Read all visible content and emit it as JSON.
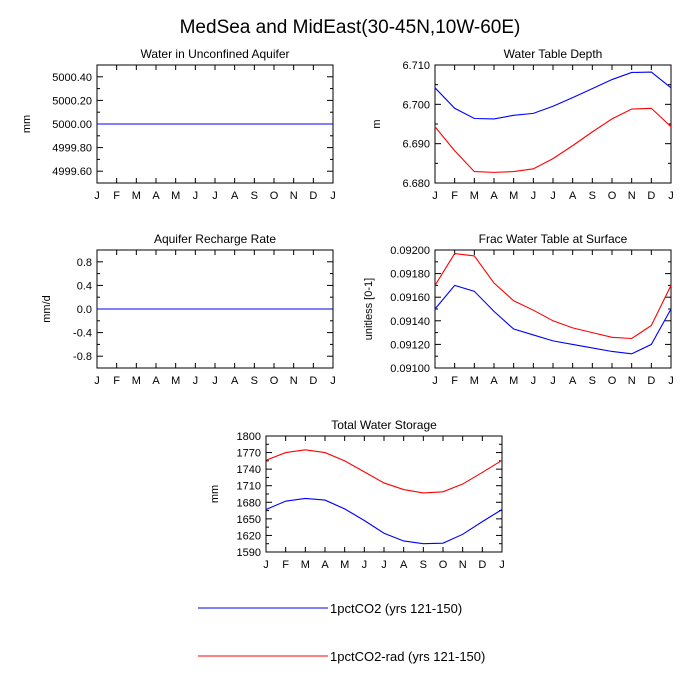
{
  "figure": {
    "title": "MedSea and MidEast(30-45N,10W-60E)"
  },
  "colors": {
    "blue": "#0000ff",
    "red": "#ff0000"
  },
  "legend": [
    {
      "label": "1pctCO2 (yrs 121-150)",
      "color": "#0000ff"
    },
    {
      "label": "1pctCO2-rad (yrs 121-150)",
      "color": "#ff0000"
    }
  ],
  "chart_data": [
    {
      "type": "line",
      "title": "Water in Unconfined Aquifer",
      "ylabel": "mm",
      "categories": [
        "J",
        "F",
        "M",
        "A",
        "M",
        "J",
        "J",
        "A",
        "S",
        "O",
        "N",
        "D",
        "J"
      ],
      "ylim": [
        4999.5,
        5000.5
      ],
      "yticks": [
        "5000.40",
        "5000.20",
        "5000.00",
        "4999.80",
        "4999.60"
      ],
      "ytick_values": [
        5000.4,
        5000.2,
        5000.0,
        4999.8,
        4999.6
      ],
      "series": [
        {
          "name": "1pctCO2 (yrs 121-150)",
          "color": "#0000ff",
          "values": [
            5000,
            5000,
            5000,
            5000,
            5000,
            5000,
            5000,
            5000,
            5000,
            5000,
            5000,
            5000,
            5000
          ]
        },
        {
          "name": "1pctCO2-rad (yrs 121-150)",
          "color": "#ff0000",
          "values": [
            5000,
            5000,
            5000,
            5000,
            5000,
            5000,
            5000,
            5000,
            5000,
            5000,
            5000,
            5000,
            5000
          ]
        }
      ]
    },
    {
      "type": "line",
      "title": "Water Table Depth",
      "ylabel": "m",
      "categories": [
        "J",
        "F",
        "M",
        "A",
        "M",
        "J",
        "J",
        "A",
        "S",
        "O",
        "N",
        "D",
        "J"
      ],
      "ylim": [
        6.68,
        6.71
      ],
      "yticks": [
        "6.710",
        "6.700",
        "6.690",
        "6.680"
      ],
      "ytick_values": [
        6.71,
        6.7,
        6.69,
        6.68
      ],
      "series": [
        {
          "name": "1pctCO2 (yrs 121-150)",
          "color": "#0000ff",
          "values": [
            6.7042,
            6.699,
            6.6964,
            6.6963,
            6.6972,
            6.6977,
            6.6995,
            6.7017,
            6.704,
            6.7063,
            6.7081,
            6.7082,
            6.7042
          ]
        },
        {
          "name": "1pctCO2-rad (yrs 121-150)",
          "color": "#ff0000",
          "values": [
            6.6943,
            6.6882,
            6.6829,
            6.6827,
            6.6829,
            6.6836,
            6.6862,
            6.6895,
            6.693,
            6.6963,
            6.6988,
            6.699,
            6.6943
          ]
        }
      ]
    },
    {
      "type": "line",
      "title": "Aquifer Recharge Rate",
      "ylabel": "mm/d",
      "categories": [
        "J",
        "F",
        "M",
        "A",
        "M",
        "J",
        "J",
        "A",
        "S",
        "O",
        "N",
        "D",
        "J"
      ],
      "ylim": [
        -1.0,
        1.0
      ],
      "yticks": [
        "0.8",
        "0.4",
        "0.0",
        "-0.4",
        "-0.8"
      ],
      "ytick_values": [
        0.8,
        0.4,
        0.0,
        -0.4,
        -0.8
      ],
      "series": [
        {
          "name": "1pctCO2 (yrs 121-150)",
          "color": "#0000ff",
          "values": [
            0,
            0,
            0,
            0,
            0,
            0,
            0,
            0,
            0,
            0,
            0,
            0,
            0
          ]
        },
        {
          "name": "1pctCO2-rad (yrs 121-150)",
          "color": "#ff0000",
          "values": [
            0,
            0,
            0,
            0,
            0,
            0,
            0,
            0,
            0,
            0,
            0,
            0,
            0
          ]
        }
      ]
    },
    {
      "type": "line",
      "title": "Frac Water Table at Surface",
      "ylabel": "unitless [0-1]",
      "categories": [
        "J",
        "F",
        "M",
        "A",
        "M",
        "J",
        "J",
        "A",
        "S",
        "O",
        "N",
        "D",
        "J"
      ],
      "ylim": [
        0.091,
        0.092
      ],
      "yticks": [
        "0.09200",
        "0.09180",
        "0.09160",
        "0.09140",
        "0.09120",
        "0.09100"
      ],
      "ytick_values": [
        0.092,
        0.0918,
        0.0916,
        0.0914,
        0.0912,
        0.091
      ],
      "series": [
        {
          "name": "1pctCO2 (yrs 121-150)",
          "color": "#0000ff",
          "values": [
            0.0915,
            0.0917,
            0.09165,
            0.09148,
            0.09133,
            0.09128,
            0.09123,
            0.0912,
            0.09117,
            0.09114,
            0.09112,
            0.0912,
            0.0915
          ]
        },
        {
          "name": "1pctCO2-rad (yrs 121-150)",
          "color": "#ff0000",
          "values": [
            0.0917,
            0.09197,
            0.09195,
            0.09172,
            0.09157,
            0.09149,
            0.0914,
            0.09134,
            0.0913,
            0.09126,
            0.09125,
            0.09136,
            0.0917
          ]
        }
      ]
    },
    {
      "type": "line",
      "title": "Total Water Storage",
      "ylabel": "mm",
      "categories": [
        "J",
        "F",
        "M",
        "A",
        "M",
        "J",
        "J",
        "A",
        "S",
        "O",
        "N",
        "D",
        "J"
      ],
      "ylim": [
        1590,
        1800
      ],
      "yticks": [
        "1800",
        "1770",
        "1740",
        "1710",
        "1680",
        "1650",
        "1620",
        "1590"
      ],
      "ytick_values": [
        1800,
        1770,
        1740,
        1710,
        1680,
        1650,
        1620,
        1590
      ],
      "series": [
        {
          "name": "1pctCO2 (yrs 121-150)",
          "color": "#0000ff",
          "values": [
            1667,
            1682,
            1687,
            1684,
            1668,
            1647,
            1624,
            1610,
            1605,
            1606,
            1622,
            1645,
            1667
          ]
        },
        {
          "name": "1pctCO2-rad (yrs 121-150)",
          "color": "#ff0000",
          "values": [
            1756,
            1770,
            1775,
            1770,
            1755,
            1735,
            1715,
            1703,
            1697,
            1699,
            1713,
            1734,
            1756
          ]
        }
      ]
    }
  ]
}
